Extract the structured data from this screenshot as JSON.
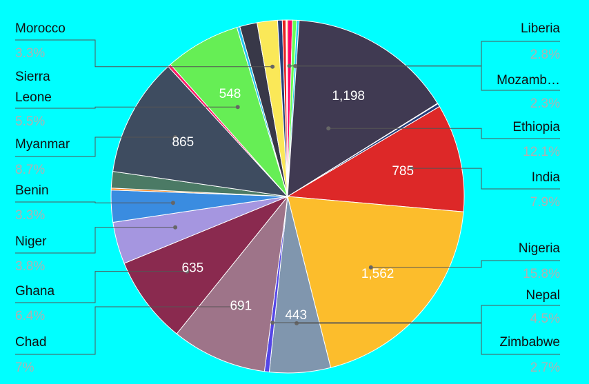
{
  "chart_data": {
    "type": "pie",
    "title": "",
    "legend": "none",
    "slices": [
      {
        "label": "",
        "value": 35,
        "color": "#FF0066"
      },
      {
        "label": "",
        "value": 30,
        "color": "#66FF55"
      },
      {
        "label": "",
        "value": 18,
        "color": "#22CCF0"
      },
      {
        "label": "",
        "value": 1198,
        "color": "#403A52",
        "value_label": "1,198"
      },
      {
        "label": "",
        "value": 4,
        "color": "#FFFFFF"
      },
      {
        "label": "",
        "value": 23,
        "color": "#253E7A"
      },
      {
        "label": "",
        "value": 785,
        "color": "#DD2828",
        "value_label": "785"
      },
      {
        "label": "",
        "value": 1562,
        "color": "#FCBD2C",
        "value_label": "1,562"
      },
      {
        "label": "",
        "value": 443,
        "color": "#8096AE",
        "value_label": "443"
      },
      {
        "label": "",
        "value": 35,
        "color": "#5546E6"
      },
      {
        "label": "",
        "value": 691,
        "color": "#9E7489",
        "value_label": "691"
      },
      {
        "label": "",
        "value": 635,
        "color": "#8A2A4F",
        "value_label": "635"
      },
      {
        "label": "",
        "value": 305,
        "color": "#A596E0"
      },
      {
        "label": "",
        "value": 232,
        "color": "#3A8CE0"
      },
      {
        "label": "",
        "value": 14,
        "color": "#FF8820"
      },
      {
        "label": "",
        "value": 120,
        "color": "#4B7A65"
      },
      {
        "label": "",
        "value": 865,
        "color": "#3E4C60",
        "value_label": "865"
      },
      {
        "label": "",
        "value": 22,
        "color": "#FF1A66"
      },
      {
        "label": "",
        "value": 548,
        "color": "#66EE55",
        "value_label": "548"
      },
      {
        "label": "",
        "value": 22,
        "color": "#22C4EE"
      },
      {
        "label": "",
        "value": 126,
        "color": "#383848"
      },
      {
        "label": "",
        "value": 148,
        "color": "#FAE858"
      },
      {
        "label": "",
        "value": 34,
        "color": "#253E7A"
      },
      {
        "label": "",
        "value": 26,
        "color": "#E82222"
      },
      {
        "label": "",
        "value": 4,
        "color": "#FFFFFF"
      },
      {
        "label": "",
        "value": 8,
        "color": "#FCBD2C"
      }
    ],
    "callouts": [
      {
        "name_lines": [
          "Liberia"
        ],
        "percent": "2.8%",
        "side": "right"
      },
      {
        "name_lines": [
          "Mozamb…"
        ],
        "percent": "2.3%",
        "side": "right"
      },
      {
        "name_lines": [
          "Ethiopia"
        ],
        "percent": "12.1%",
        "side": "right"
      },
      {
        "name_lines": [
          "India"
        ],
        "percent": "7.9%",
        "side": "right"
      },
      {
        "name_lines": [
          "Nigeria"
        ],
        "percent": "15.8%",
        "side": "right"
      },
      {
        "name_lines": [
          "Nepal"
        ],
        "percent": "4.5%",
        "side": "right"
      },
      {
        "name_lines": [
          "Zimbabwe"
        ],
        "percent": "2.7%",
        "side": "right"
      },
      {
        "name_lines": [
          "Morocco"
        ],
        "percent": "3.3%",
        "side": "left"
      },
      {
        "name_lines": [
          "Sierra",
          "Leone"
        ],
        "percent": "5.5%",
        "side": "left"
      },
      {
        "name_lines": [
          "Myanmar"
        ],
        "percent": "8.7%",
        "side": "left"
      },
      {
        "name_lines": [
          "Benin"
        ],
        "percent": "3.3%",
        "side": "left"
      },
      {
        "name_lines": [
          "Niger"
        ],
        "percent": "3.8%",
        "side": "left"
      },
      {
        "name_lines": [
          "Ghana"
        ],
        "percent": "6.4%",
        "side": "left"
      },
      {
        "name_lines": [
          "Chad"
        ],
        "percent": "7%",
        "side": "left"
      }
    ]
  }
}
